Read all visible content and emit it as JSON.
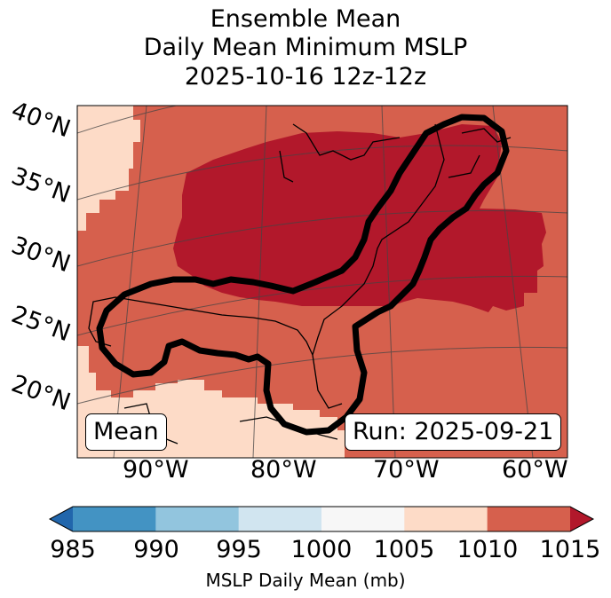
{
  "title": {
    "line1": "Ensemble Mean",
    "line2": "Daily Mean Minimum MSLP",
    "line3": "2025-10-16 12z-12z"
  },
  "lat_labels": [
    "40°N",
    "35°N",
    "30°N",
    "25°N",
    "20°N"
  ],
  "lon_labels": [
    "90°W",
    "80°W",
    "70°W",
    "60°W"
  ],
  "annotations": {
    "left": "Mean",
    "right": "Run: 2025-09-21"
  },
  "colorbar": {
    "ticks": [
      "985",
      "990",
      "995",
      "1000",
      "1005",
      "1010",
      "1015"
    ],
    "label": "MSLP Daily Mean (mb)",
    "colors": [
      "#2166ac",
      "#4393c3",
      "#92c5de",
      "#d1e5f0",
      "#f7f7f7",
      "#fddbc7",
      "#d6604d",
      "#b2182b"
    ]
  },
  "fill_colors": {
    "high": "#b2182b",
    "mid": "#d6604d",
    "low": "#fddbc7"
  }
}
